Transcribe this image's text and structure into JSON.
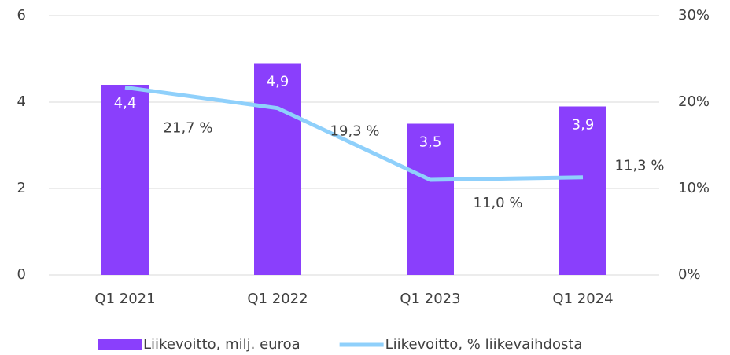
{
  "chart_data": {
    "type": "bar",
    "categories": [
      "Q1 2021",
      "Q1 2022",
      "Q1 2023",
      "Q1 2024"
    ],
    "series": [
      {
        "name": "Liikevoitto, milj. euroa",
        "type": "bar",
        "color": "#8a3ffc",
        "values": [
          4.4,
          4.9,
          3.5,
          3.9
        ],
        "value_labels": [
          "4,4",
          "4,9",
          "3,5",
          "3,9"
        ]
      },
      {
        "name": "Liikevoitto, % liikevaihdosta",
        "type": "line",
        "axis": "y2",
        "color": "#8fd0fb",
        "values": [
          21.7,
          19.3,
          11.0,
          11.3
        ],
        "value_labels": [
          "21,7 %",
          "19,3 %",
          "11,0 %",
          "11,3 %"
        ]
      }
    ],
    "ylim": [
      0,
      6
    ],
    "yticks": [
      0,
      2,
      4,
      6
    ],
    "y2lim": [
      0,
      30
    ],
    "y2ticks": [
      {
        "value": 0,
        "label": "0%"
      },
      {
        "value": 10,
        "label": "10%"
      },
      {
        "value": 20,
        "label": "20%"
      },
      {
        "value": 30,
        "label": "30%"
      }
    ],
    "grid": true,
    "legend": "bottom"
  }
}
